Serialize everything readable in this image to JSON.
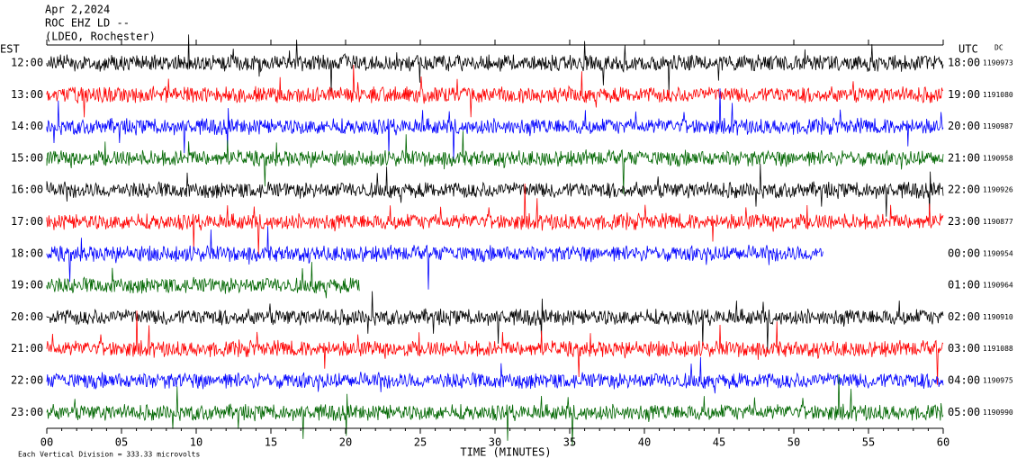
{
  "header": {
    "date": "Apr 2,2024",
    "station": "ROC EHZ LD --",
    "network": "(LDEO, Rochester)"
  },
  "left_zone": "EST",
  "right_zone": "UTC",
  "dc_label": "DC",
  "rows": [
    {
      "est": "12:00",
      "utc": "18:00",
      "count": "1190973"
    },
    {
      "est": "13:00",
      "utc": "19:00",
      "count": "1191080"
    },
    {
      "est": "14:00",
      "utc": "20:00",
      "count": "1190987"
    },
    {
      "est": "15:00",
      "utc": "21:00",
      "count": "1190958"
    },
    {
      "est": "16:00",
      "utc": "22:00",
      "count": "1190926"
    },
    {
      "est": "17:00",
      "utc": "23:00",
      "count": "1190877"
    },
    {
      "est": "18:00",
      "utc": "00:00",
      "count": "1190954"
    },
    {
      "est": "19:00",
      "utc": "01:00",
      "count": "1190964"
    },
    {
      "est": "20:00",
      "utc": "02:00",
      "count": "1190910"
    },
    {
      "est": "21:00",
      "utc": "03:00",
      "count": "1191088"
    },
    {
      "est": "22:00",
      "utc": "04:00",
      "count": "1190975"
    },
    {
      "est": "23:00",
      "utc": "05:00",
      "count": "1190990"
    }
  ],
  "trace_colors": [
    "#000000",
    "#ff0000",
    "#0000ff",
    "#006600"
  ],
  "x_ticks": [
    "00",
    "05",
    "10",
    "15",
    "20",
    "25",
    "30",
    "35",
    "40",
    "45",
    "50",
    "55",
    "60"
  ],
  "x_label": "TIME (MINUTES)",
  "footer": "Each Vertical Division =  333.33 microvolts"
}
